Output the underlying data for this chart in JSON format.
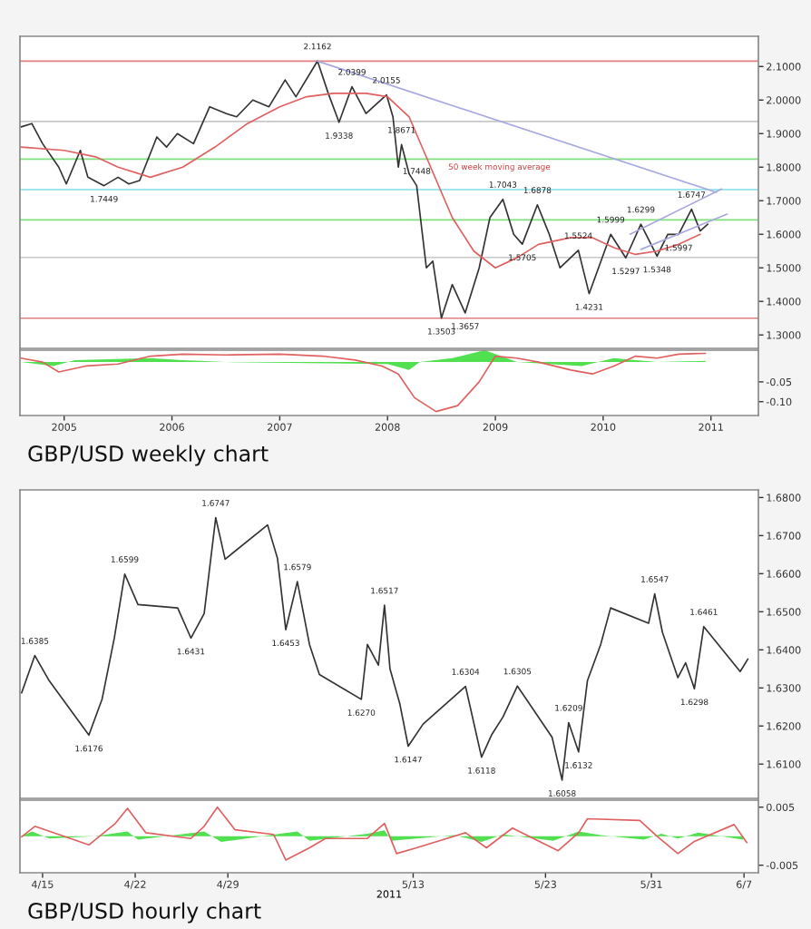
{
  "chart_data": [
    {
      "type": "line",
      "xlim": [
        2005.09,
        2011.94
      ],
      "ylim": [
        1.26,
        2.19
      ],
      "tick_labels": "y",
      "yticks": [
        {
          "value": 1.3,
          "label": "1.3000"
        },
        {
          "value": 1.4,
          "label": "1.4000"
        },
        {
          "value": 1.5,
          "label": "1.5000"
        },
        {
          "value": 1.6,
          "label": "1.6000"
        },
        {
          "value": 1.7,
          "label": "1.7000"
        },
        {
          "value": 1.8,
          "label": "1.8000"
        },
        {
          "value": 1.9,
          "label": "1.9000"
        },
        {
          "value": 2.0,
          "label": "2.0000"
        },
        {
          "value": 2.1,
          "label": "2.1000"
        }
      ],
      "series": [
        {
          "color": "#333333",
          "x": [
            2005.1,
            2005.2,
            2005.3,
            2005.45,
            2005.52,
            2005.65,
            2005.72,
            2005.87,
            2006.0,
            2006.1,
            2006.2,
            2006.36,
            2006.45,
            2006.55,
            2006.7,
            2006.85,
            2007.0,
            2007.1,
            2007.25,
            2007.4,
            2007.55,
            2007.65,
            2007.85,
            2007.95,
            2008.05,
            2008.17,
            2008.3,
            2008.49,
            2008.55,
            2008.6,
            2008.63,
            2008.7,
            2008.77,
            2008.86,
            2008.92,
            2009.0,
            2009.1,
            2009.22,
            2009.35,
            2009.45,
            2009.57,
            2009.67,
            2009.75,
            2009.89,
            2010.0,
            2010.1,
            2010.27,
            2010.37,
            2010.57,
            2010.71,
            2010.85,
            2011.0,
            2011.1,
            2011.2,
            2011.32,
            2011.4,
            2011.47
          ],
          "values": [
            1.92,
            1.93,
            1.87,
            1.8,
            1.75,
            1.85,
            1.77,
            1.7449,
            1.77,
            1.75,
            1.76,
            1.89,
            1.86,
            1.9,
            1.87,
            1.98,
            1.96,
            1.95,
            2.0,
            1.98,
            2.06,
            2.01,
            2.1162,
            2.02,
            1.9338,
            2.0399,
            1.96,
            2.0155,
            1.95,
            1.8,
            1.8671,
            1.78,
            1.7448,
            1.5,
            1.52,
            1.3503,
            1.45,
            1.3657,
            1.5,
            1.65,
            1.7043,
            1.6,
            1.5705,
            1.6878,
            1.6,
            1.5,
            1.5524,
            1.4231,
            1.5999,
            1.5297,
            1.6299,
            1.5348,
            1.6,
            1.5997,
            1.6747,
            1.61,
            1.63
          ]
        },
        {
          "color": "#e06060",
          "x": [
            2005.1,
            2005.5,
            2005.8,
            2006.0,
            2006.3,
            2006.6,
            2006.9,
            2007.2,
            2007.5,
            2007.75,
            2008.0,
            2008.3,
            2008.5,
            2008.7,
            2008.9,
            2009.1,
            2009.3,
            2009.5,
            2009.7,
            2009.9,
            2010.2,
            2010.4,
            2010.6,
            2010.8,
            2011.0,
            2011.2,
            2011.4
          ],
          "values": [
            1.86,
            1.85,
            1.83,
            1.8,
            1.77,
            1.8,
            1.86,
            1.93,
            1.98,
            2.01,
            2.02,
            2.02,
            2.01,
            1.95,
            1.8,
            1.65,
            1.55,
            1.5,
            1.53,
            1.57,
            1.59,
            1.59,
            1.56,
            1.54,
            1.55,
            1.57,
            1.6
          ]
        },
        {
          "color": "#a8a8e0",
          "x": [
            2007.85,
            2011.55
          ],
          "values": [
            2.116,
            1.725
          ]
        },
        {
          "color": "#a8a8e0",
          "x": [
            2010.75,
            2011.6
          ],
          "values": [
            1.6,
            1.735
          ]
        },
        {
          "color": "#a8a8e0",
          "x": [
            2010.85,
            2011.65
          ],
          "values": [
            1.555,
            1.66
          ]
        }
      ],
      "ref_lines": [
        {
          "axis": "y",
          "value": 2.116,
          "color": "#e08080"
        },
        {
          "axis": "y",
          "value": 1.936,
          "color": "#c8c8c8"
        },
        {
          "axis": "y",
          "value": 1.824,
          "color": "#80e080"
        },
        {
          "axis": "y",
          "value": 1.733,
          "color": "#80e0e8"
        },
        {
          "axis": "y",
          "value": 1.643,
          "color": "#80e080"
        },
        {
          "axis": "y",
          "value": 1.531,
          "color": "#c8c8c8"
        },
        {
          "axis": "y",
          "value": 1.35,
          "color": "#e08080"
        }
      ],
      "annotations": [
        {
          "text": "2.1162",
          "x": 2007.85,
          "y": 2.1162
        },
        {
          "text": "2.0399",
          "x": 2008.17,
          "y": 2.0399
        },
        {
          "text": "2.0155",
          "x": 2008.49,
          "y": 2.0155
        },
        {
          "text": "1.9338",
          "x": 2008.05,
          "y": 1.9338
        },
        {
          "text": "1.8671",
          "x": 2008.63,
          "y": 1.8671
        },
        {
          "text": "1.7449",
          "x": 2005.87,
          "y": 1.7449
        },
        {
          "text": "1.7448",
          "x": 2008.77,
          "y": 1.7448
        },
        {
          "text": "1.3503",
          "x": 2009.0,
          "y": 1.3503
        },
        {
          "text": "1.3657",
          "x": 2009.22,
          "y": 1.3657
        },
        {
          "text": "1.7043",
          "x": 2009.57,
          "y": 1.7043
        },
        {
          "text": "1.5705",
          "x": 2009.75,
          "y": 1.5705
        },
        {
          "text": "1.6878",
          "x": 2009.89,
          "y": 1.6878
        },
        {
          "text": "1.5524",
          "x": 2010.27,
          "y": 1.5524
        },
        {
          "text": "1.4231",
          "x": 2010.37,
          "y": 1.4231
        },
        {
          "text": "1.5999",
          "x": 2010.57,
          "y": 1.5999
        },
        {
          "text": "1.5297",
          "x": 2010.71,
          "y": 1.5297
        },
        {
          "text": "1.6299",
          "x": 2010.85,
          "y": 1.6299
        },
        {
          "text": "1.5348",
          "x": 2011.0,
          "y": 1.5348
        },
        {
          "text": "1.5997",
          "x": 2011.2,
          "y": 1.5997
        },
        {
          "text": "1.6747",
          "x": 2011.32,
          "y": 1.6747
        },
        "50 week moving average"
      ]
    },
    {
      "type": "line",
      "xlim": [
        2005.09,
        2011.94
      ],
      "ylim": [
        -0.135,
        0.03
      ],
      "xticks": [
        {
          "value": 2005.5,
          "label": "2005"
        },
        {
          "value": 2006.5,
          "label": "2006"
        },
        {
          "value": 2007.5,
          "label": "2007"
        },
        {
          "value": 2008.5,
          "label": "2008"
        },
        {
          "value": 2009.5,
          "label": "2009"
        },
        {
          "value": 2010.5,
          "label": "2010"
        },
        {
          "value": 2011.5,
          "label": "2011"
        }
      ],
      "yticks": [
        {
          "value": -0.05,
          "label": "-0.05"
        },
        {
          "value": -0.1,
          "label": "-0.10"
        }
      ],
      "series": [
        {
          "type": "area",
          "color": "#50e050",
          "x": [
            2005.1,
            2005.4,
            2005.6,
            2006.3,
            2006.6,
            2007.0,
            2008.5,
            2008.7,
            2008.8,
            2009.1,
            2009.4,
            2009.5,
            2009.7,
            2010.0,
            2010.3,
            2010.6,
            2010.8,
            2011.0,
            2011.45
          ],
          "values": [
            0,
            -0.01,
            0.005,
            0.01,
            0.005,
            0,
            -0.005,
            -0.02,
            0,
            0.01,
            0.03,
            0.02,
            0,
            -0.005,
            -0.01,
            0.01,
            0.005,
            0,
            0.003
          ]
        },
        {
          "color": "#e06060",
          "x": [
            2005.1,
            2005.3,
            2005.45,
            2005.7,
            2006.0,
            2006.3,
            2006.6,
            2007.0,
            2007.5,
            2007.9,
            2008.2,
            2008.45,
            2008.6,
            2008.75,
            2008.95,
            2009.15,
            2009.35,
            2009.5,
            2009.7,
            2009.9,
            2010.2,
            2010.4,
            2010.6,
            2010.8,
            2011.0,
            2011.2,
            2011.45
          ],
          "values": [
            0.01,
            0,
            -0.025,
            -0.01,
            -0.005,
            0.015,
            0.02,
            0.018,
            0.02,
            0.015,
            0.005,
            -0.01,
            -0.03,
            -0.09,
            -0.125,
            -0.11,
            -0.05,
            0.015,
            0.01,
            0,
            -0.02,
            -0.03,
            -0.01,
            0.015,
            0.01,
            0.02,
            0.022
          ]
        }
      ],
      "annotations": [
        "GBP/USD weekly chart"
      ]
    },
    {
      "type": "line",
      "xlim": [
        "2011-04-13T07:00",
        "2011-06-08T02:00"
      ],
      "ylim": [
        1.601,
        1.682
      ],
      "tick_labels": "y",
      "yticks": [
        {
          "value": 1.61,
          "label": "1.6100"
        },
        {
          "value": 1.62,
          "label": "1.6200"
        },
        {
          "value": 1.63,
          "label": "1.6300"
        },
        {
          "value": 1.64,
          "label": "1.6400"
        },
        {
          "value": 1.65,
          "label": "1.6500"
        },
        {
          "value": 1.66,
          "label": "1.6600"
        },
        {
          "value": 1.67,
          "label": "1.6700"
        },
        {
          "value": 1.68,
          "label": "1.6800"
        }
      ],
      "series": [
        {
          "color": "#333333",
          "x": [
            "2011-04-13T10:00",
            "2011-04-14T10:00",
            "2011-04-15T12:00",
            "2011-04-18T12:00",
            "2011-04-19T12:00",
            "2011-04-20T10:00",
            "2011-04-21T05:00",
            "2011-04-22T05:00",
            "2011-04-25T05:00",
            "2011-04-26T05:00",
            "2011-04-27T05:00",
            "2011-04-28T02:00",
            "2011-04-28T19:00",
            "2011-05-02T00:00",
            "2011-05-02T18:00",
            "2011-05-03T09:00",
            "2011-05-04T06:00",
            "2011-05-05T04:00",
            "2011-05-05T22:00",
            "2011-05-09T02:00",
            "2011-05-09T13:00",
            "2011-05-10T09:00",
            "2011-05-10T20:00",
            "2011-05-11T06:00",
            "2011-05-12T00:00",
            "2011-05-12T15:00",
            "2011-05-13T18:00",
            "2011-05-16T23:00",
            "2011-05-18T04:00",
            "2011-05-18T22:00",
            "2011-05-19T19:00",
            "2011-05-20T21:00",
            "2011-05-23T12:00",
            "2011-05-24T06:00",
            "2011-05-24T18:00",
            "2011-05-25T12:00",
            "2011-05-26T04:00",
            "2011-05-27T04:00",
            "2011-05-27T22:00",
            "2011-05-30T19:00",
            "2011-05-31T06:00",
            "2011-05-31T20:00",
            "2011-06-02T00:00",
            "2011-06-02T14:00",
            "2011-06-03T06:00",
            "2011-06-03T23:00",
            "2011-06-06T17:00",
            "2011-06-07T07:00"
          ],
          "values": [
            1.6287,
            1.6385,
            1.6319,
            1.6176,
            1.6271,
            1.643,
            1.6599,
            1.6519,
            1.651,
            1.6431,
            1.6495,
            1.6747,
            1.6638,
            1.6728,
            1.664,
            1.6453,
            1.6579,
            1.6414,
            1.6335,
            1.627,
            1.6414,
            1.636,
            1.6517,
            1.635,
            1.6257,
            1.6147,
            1.6205,
            1.6304,
            1.6118,
            1.6176,
            1.6224,
            1.6305,
            1.617,
            1.6058,
            1.6209,
            1.6132,
            1.6319,
            1.6414,
            1.651,
            1.647,
            1.6547,
            1.6446,
            1.6327,
            1.6366,
            1.6298,
            1.6461,
            1.6343,
            1.6376
          ]
        }
      ],
      "annotations": [
        {
          "text": "1.6385",
          "x": "2011-04-14T10:00",
          "y": 1.6385
        },
        {
          "text": "1.6176",
          "x": "2011-04-18T12:00",
          "y": 1.6176
        },
        {
          "text": "1.6599",
          "x": "2011-04-21T05:00",
          "y": 1.6599
        },
        {
          "text": "1.6431",
          "x": "2011-04-26T05:00",
          "y": 1.6431
        },
        {
          "text": "1.6747",
          "x": "2011-04-28T02:00",
          "y": 1.6747
        },
        {
          "text": "1.6453",
          "x": "2011-05-03T09:00",
          "y": 1.6453
        },
        {
          "text": "1.6579",
          "x": "2011-05-04T06:00",
          "y": 1.6579
        },
        {
          "text": "1.6270",
          "x": "2011-05-09T02:00",
          "y": 1.627
        },
        {
          "text": "1.6517",
          "x": "2011-05-10T20:00",
          "y": 1.6517
        },
        {
          "text": "1.6147",
          "x": "2011-05-12T15:00",
          "y": 1.6147
        },
        {
          "text": "1.6304",
          "x": "2011-05-16T23:00",
          "y": 1.6304
        },
        {
          "text": "1.6118",
          "x": "2011-05-18T04:00",
          "y": 1.6118
        },
        {
          "text": "1.6305",
          "x": "2011-05-20T21:00",
          "y": 1.6305
        },
        {
          "text": "1.6058",
          "x": "2011-05-24T06:00",
          "y": 1.6058
        },
        {
          "text": "1.6209",
          "x": "2011-05-24T18:00",
          "y": 1.6209
        },
        {
          "text": "1.6132",
          "x": "2011-05-25T12:00",
          "y": 1.6132
        },
        {
          "text": "1.6547",
          "x": "2011-05-31T06:00",
          "y": 1.6547
        },
        {
          "text": "1.6298",
          "x": "2011-06-03T06:00",
          "y": 1.6298
        },
        {
          "text": "1.6461",
          "x": "2011-06-03T23:00",
          "y": 1.6461
        }
      ]
    },
    {
      "type": "line",
      "xlim": [
        "2011-04-13T07:00",
        "2011-06-08T02:00"
      ],
      "ylim": [
        -0.0063,
        0.0062
      ],
      "xlabel": "2011",
      "xticks": [
        {
          "value": "2011-04-15",
          "label": "4/15"
        },
        {
          "value": "2011-04-22",
          "label": "4/22"
        },
        {
          "value": "2011-04-29",
          "label": "4/29"
        },
        {
          "value": "2011-05-13",
          "label": "5/13"
        },
        {
          "value": "2011-05-23",
          "label": "5/23"
        },
        {
          "value": "2011-05-31",
          "label": "5/31"
        },
        {
          "value": "2011-06-07",
          "label": "6/7"
        }
      ],
      "yticks": [
        {
          "value": -0.005,
          "label": "-0.005"
        },
        {
          "value": 0.005,
          "label": "0.005"
        }
      ],
      "series": [
        {
          "type": "area",
          "color": "#50e050",
          "x": [
            "2011-04-13T10:00",
            "2011-04-14T05:00",
            "2011-04-15T12:00",
            "2011-04-18T22:00",
            "2011-04-21T10:00",
            "2011-04-22T05:00",
            "2011-04-27T05:00",
            "2011-04-28T12:00",
            "2011-05-02T04:00",
            "2011-05-04T06:00",
            "2011-05-05T04:00",
            "2011-05-09T13:00",
            "2011-05-10T20:00",
            "2011-05-11T09:00",
            "2011-05-16T02:00",
            "2011-05-18T04:00",
            "2011-05-19T19:00",
            "2011-05-23T14:00",
            "2011-05-25T12:00",
            "2011-05-27T04:00",
            "2011-05-30T10:00",
            "2011-05-31T18:00",
            "2011-06-02T00:00",
            "2011-06-03T13:00",
            "2011-06-06T22:00"
          ],
          "values": [
            0,
            0.0008,
            -0.0004,
            0,
            0.0008,
            -0.0006,
            0.0008,
            -0.001,
            0.0002,
            0.0008,
            -0.0008,
            0.0004,
            0.001,
            -0.0008,
            0.0002,
            -0.001,
            0.0003,
            -0.0008,
            0.0008,
            0.0002,
            -0.0006,
            0.0004,
            -0.0004,
            0.0006,
            -0.0006
          ]
        },
        {
          "color": "#e06060",
          "x": [
            "2011-04-13T10:00",
            "2011-04-14T10:00",
            "2011-04-18T12:00",
            "2011-04-20T12:00",
            "2011-04-21T10:00",
            "2011-04-22T19:00",
            "2011-04-26T05:00",
            "2011-04-27T05:00",
            "2011-04-28T05:00",
            "2011-04-29T13:00",
            "2011-05-02T11:00",
            "2011-05-03T09:00",
            "2011-05-05T04:00",
            "2011-05-06T09:00",
            "2011-05-09T13:00",
            "2011-05-10T20:00",
            "2011-05-11T18:00",
            "2011-05-13T06:00",
            "2011-05-16T23:00",
            "2011-05-18T13:00",
            "2011-05-20T12:00",
            "2011-05-23T23:00",
            "2011-05-25T12:00",
            "2011-05-26T04:00",
            "2011-05-30T03:00",
            "2011-05-31T09:00",
            "2011-06-02T00:00",
            "2011-06-03T06:00",
            "2011-06-06T06:00",
            "2011-06-07T05:00"
          ],
          "values": [
            -0.0001,
            0.0017,
            -0.0015,
            0.0022,
            0.0048,
            0.0006,
            -0.0004,
            0.0017,
            0.005,
            0.0011,
            0.0003,
            -0.0041,
            -0.002,
            -0.0004,
            -0.0004,
            0.0022,
            -0.003,
            -0.002,
            0.0006,
            -0.002,
            0.0014,
            -0.0025,
            0.0006,
            0.003,
            0.0027,
            0.0001,
            -0.003,
            -0.0009,
            0.002,
            -0.0011
          ]
        }
      ],
      "annotations": [
        "GBP/USD hourly chart"
      ]
    }
  ]
}
